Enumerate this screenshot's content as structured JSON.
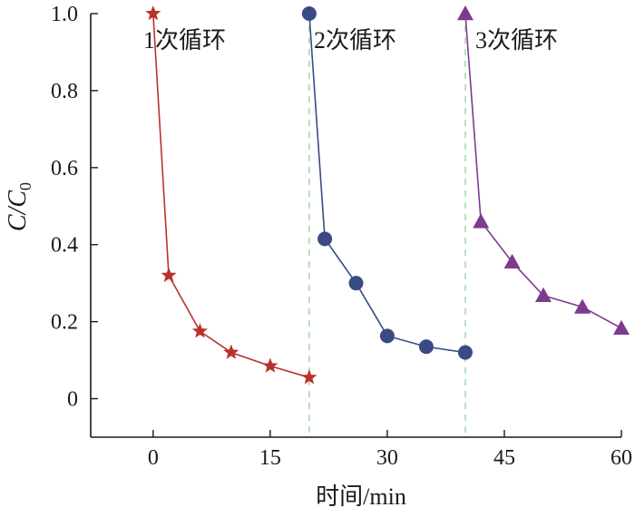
{
  "chart_data": {
    "type": "line",
    "title": "",
    "xlabel": "时间/min",
    "ylabel_main": "C/C",
    "ylabel_sub": "0",
    "xlim": [
      -8,
      60
    ],
    "ylim": [
      -0.1,
      1.0
    ],
    "xticks": [
      0,
      15,
      30,
      45,
      60
    ],
    "xtick_labels": [
      "0",
      "15",
      "30",
      "45",
      "60"
    ],
    "yticks": [
      0,
      0.2,
      0.4,
      0.6,
      0.8,
      1.0
    ],
    "ytick_labels": [
      "0",
      "0.2",
      "0.4",
      "0.6",
      "0.8",
      "1.0"
    ],
    "grid": false,
    "series": [
      {
        "label": "1次循环",
        "marker": "star",
        "color": "#b8322a",
        "x": [
          0,
          2,
          6,
          10,
          15,
          20
        ],
        "y": [
          1.0,
          0.32,
          0.175,
          0.12,
          0.085,
          0.055
        ]
      },
      {
        "label": "2次循环",
        "marker": "circle",
        "color": "#3a4a85",
        "x": [
          20,
          22,
          26,
          30,
          35,
          40
        ],
        "y": [
          1.0,
          0.415,
          0.3,
          0.163,
          0.135,
          0.12
        ]
      },
      {
        "label": "3次循环",
        "marker": "triangle",
        "color": "#7b3b8f",
        "x": [
          40,
          42,
          46,
          50,
          55,
          60
        ],
        "y": [
          1.0,
          0.46,
          0.355,
          0.268,
          0.238,
          0.183
        ]
      }
    ],
    "separators": {
      "x": [
        20,
        40
      ],
      "color": "#a8d8b0",
      "style": "dashed"
    }
  }
}
